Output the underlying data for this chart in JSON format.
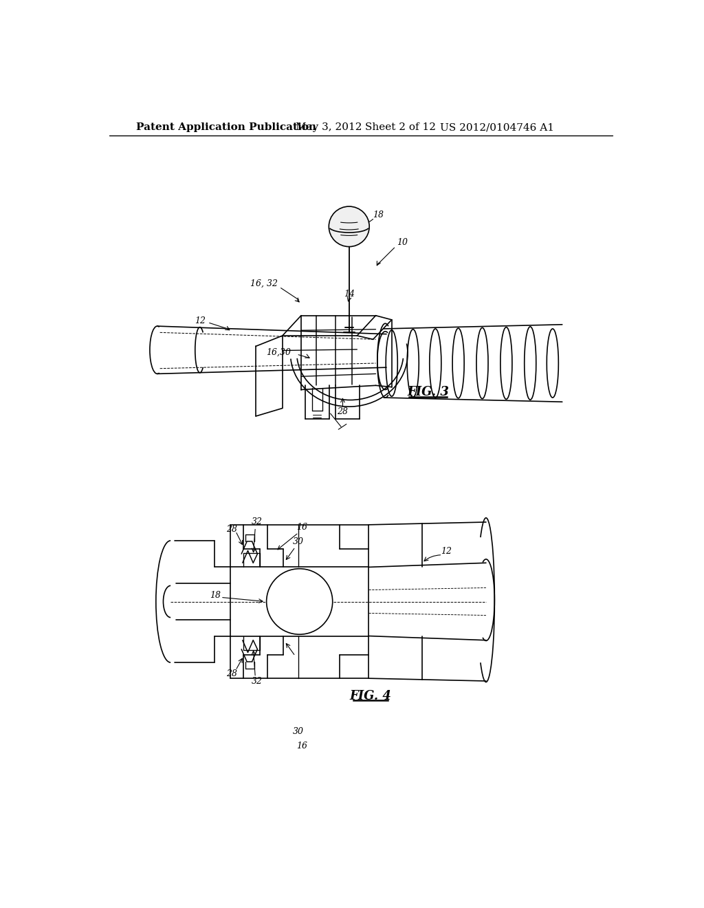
{
  "background_color": "#ffffff",
  "header_text": "Patent Application Publication",
  "header_date": "May 3, 2012",
  "header_sheet": "Sheet 2 of 12",
  "header_patent": "US 2012/0104746 A1",
  "header_fontsize": 11,
  "fig3_label": "FIG. 3",
  "fig4_label": "FIG. 4",
  "line_color": "#000000",
  "line_width": 1.2,
  "annotation_fontsize": 9,
  "fig_label_fontsize": 13
}
